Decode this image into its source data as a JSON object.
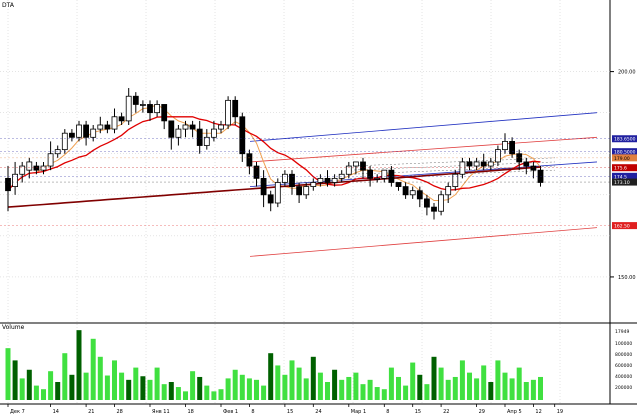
{
  "window": {
    "title_tag": "DTA"
  },
  "price_panel": {
    "axis_labels": [
      "200.00",
      "150.00"
    ],
    "price_flags": [
      {
        "text": "183.6500",
        "bg": "#2020a0",
        "fg": "#ffffff"
      },
      {
        "text": "180.5000",
        "bg": "#2020a0",
        "fg": "#ffffff"
      },
      {
        "text": "179.00",
        "bg": "#e08040",
        "fg": "#000000"
      },
      {
        "text": "175.6",
        "bg": "#c00000",
        "fg": "#ffffff"
      },
      {
        "text": "174.5",
        "bg": "#2020a0",
        "fg": "#ffffff"
      },
      {
        "text": "173.10",
        "bg": "#202020",
        "fg": "#ffffff"
      },
      {
        "text": "162.50",
        "bg": "#e02020",
        "fg": "#ffffff"
      }
    ]
  },
  "volume_panel": {
    "title": "Volume",
    "axis_labels": [
      "17949",
      "100000",
      "800000",
      "600000",
      "400000",
      "200000"
    ]
  },
  "time_axis": {
    "labels": [
      "Дек 7",
      "14",
      "21",
      "28",
      "Янв 11",
      "18",
      "Фев 1",
      "8",
      "15",
      "24",
      "Мар 1",
      "8",
      "15",
      "22",
      "29",
      "Апр 5",
      "12",
      "19"
    ]
  },
  "colors": {
    "grid": "#c8c8c8",
    "candle_up": "#ffffff",
    "candle_down": "#000000",
    "ma_fast": "#f0a050",
    "ma_mid": "#e00000",
    "ma_slow": "#800000",
    "channel_blue": "#2030c0",
    "channel_red": "#e04040",
    "volume_up": "#40e040",
    "volume_down": "#006000"
  },
  "chart_data": {
    "type": "candlestick",
    "candles": [
      [
        174,
        171,
        177,
        166
      ],
      [
        172,
        175,
        178,
        170
      ],
      [
        175,
        177,
        178,
        173
      ],
      [
        176,
        178,
        179,
        174
      ],
      [
        177,
        176,
        178,
        175
      ],
      [
        176,
        177,
        178,
        175
      ],
      [
        177,
        180,
        183,
        176
      ],
      [
        180,
        181,
        182,
        179
      ],
      [
        181,
        185,
        186,
        180
      ],
      [
        185,
        184,
        186,
        183
      ],
      [
        184,
        187,
        188,
        183
      ],
      [
        187,
        184,
        188,
        182
      ],
      [
        184,
        186,
        187,
        183
      ],
      [
        186,
        187,
        189,
        185
      ],
      [
        187,
        186,
        188,
        185
      ],
      [
        186,
        189,
        191,
        185
      ],
      [
        189,
        188,
        190,
        187
      ],
      [
        188,
        194,
        196,
        187
      ],
      [
        194,
        192,
        195,
        190
      ],
      [
        192,
        192,
        193,
        190
      ],
      [
        192,
        190,
        193,
        188
      ],
      [
        190,
        192,
        193,
        189
      ],
      [
        192,
        188,
        192,
        186
      ],
      [
        188,
        184,
        188,
        181
      ],
      [
        184,
        186,
        187,
        182
      ],
      [
        186,
        187,
        188,
        184
      ],
      [
        187,
        186,
        188,
        184
      ],
      [
        186,
        182,
        188,
        180
      ],
      [
        182,
        184,
        186,
        181
      ],
      [
        184,
        186,
        188,
        183
      ],
      [
        186,
        187,
        188,
        185
      ],
      [
        187,
        193,
        194,
        186
      ],
      [
        193,
        189,
        194,
        187
      ],
      [
        189,
        180,
        190,
        178
      ],
      [
        180,
        177,
        181,
        175
      ],
      [
        177,
        174,
        178,
        172
      ],
      [
        174,
        170,
        176,
        167
      ],
      [
        170,
        168,
        171,
        166
      ],
      [
        168,
        173,
        174,
        167
      ],
      [
        173,
        175,
        176,
        172
      ],
      [
        175,
        172,
        176,
        170
      ],
      [
        172,
        170,
        173,
        168
      ],
      [
        170,
        172,
        173,
        169
      ],
      [
        172,
        173,
        174,
        171
      ],
      [
        173,
        174,
        175,
        172
      ],
      [
        174,
        173,
        176,
        172
      ],
      [
        173,
        174,
        175,
        172
      ],
      [
        174,
        175,
        176,
        173
      ],
      [
        175,
        177,
        178,
        174
      ],
      [
        177,
        178,
        178,
        175
      ],
      [
        178,
        176,
        179,
        174
      ],
      [
        176,
        174,
        177,
        172
      ],
      [
        174,
        174,
        175,
        173
      ],
      [
        174,
        176,
        176,
        173
      ],
      [
        176,
        173,
        177,
        172
      ],
      [
        173,
        172,
        173,
        171
      ],
      [
        172,
        170,
        173,
        169
      ],
      [
        170,
        171,
        172,
        169
      ],
      [
        171,
        169,
        172,
        167
      ],
      [
        169,
        167,
        170,
        165
      ],
      [
        167,
        166,
        168,
        164
      ],
      [
        166,
        170,
        171,
        165
      ],
      [
        170,
        172,
        173,
        168
      ],
      [
        172,
        175,
        176,
        171
      ],
      [
        175,
        178,
        179,
        174
      ],
      [
        178,
        177,
        179,
        176
      ],
      [
        177,
        178,
        179,
        176
      ],
      [
        178,
        177,
        180,
        176
      ],
      [
        177,
        178,
        179,
        176
      ],
      [
        178,
        181,
        182,
        177
      ],
      [
        181,
        183,
        185,
        180
      ],
      [
        183,
        180,
        184,
        179
      ],
      [
        180,
        178,
        181,
        176
      ],
      [
        178,
        177,
        179,
        175
      ],
      [
        177,
        176,
        178,
        174
      ],
      [
        176,
        173,
        177,
        172
      ]
    ],
    "volume": [
      [
        72,
        1
      ],
      [
        55,
        0
      ],
      [
        30,
        1
      ],
      [
        42,
        0
      ],
      [
        20,
        1
      ],
      [
        15,
        1
      ],
      [
        40,
        1
      ],
      [
        25,
        0
      ],
      [
        65,
        1
      ],
      [
        35,
        0
      ],
      [
        97,
        0
      ],
      [
        38,
        1
      ],
      [
        85,
        1
      ],
      [
        60,
        1
      ],
      [
        34,
        1
      ],
      [
        55,
        1
      ],
      [
        38,
        1
      ],
      [
        28,
        0
      ],
      [
        45,
        1
      ],
      [
        33,
        0
      ],
      [
        28,
        1
      ],
      [
        45,
        1
      ],
      [
        22,
        1
      ],
      [
        25,
        0
      ],
      [
        18,
        1
      ],
      [
        12,
        1
      ],
      [
        40,
        1
      ],
      [
        32,
        0
      ],
      [
        20,
        1
      ],
      [
        12,
        1
      ],
      [
        15,
        1
      ],
      [
        30,
        1
      ],
      [
        42,
        1
      ],
      [
        35,
        1
      ],
      [
        30,
        1
      ],
      [
        28,
        1
      ],
      [
        20,
        1
      ],
      [
        65,
        0
      ],
      [
        48,
        1
      ],
      [
        35,
        1
      ],
      [
        55,
        1
      ],
      [
        45,
        1
      ],
      [
        30,
        1
      ],
      [
        60,
        0
      ],
      [
        38,
        1
      ],
      [
        25,
        1
      ],
      [
        42,
        0
      ],
      [
        28,
        1
      ],
      [
        32,
        1
      ],
      [
        38,
        1
      ],
      [
        22,
        1
      ],
      [
        28,
        1
      ],
      [
        18,
        1
      ],
      [
        15,
        1
      ],
      [
        45,
        1
      ],
      [
        32,
        1
      ],
      [
        20,
        1
      ],
      [
        52,
        1
      ],
      [
        35,
        0
      ],
      [
        22,
        1
      ],
      [
        60,
        0
      ],
      [
        45,
        1
      ],
      [
        28,
        1
      ],
      [
        32,
        1
      ],
      [
        55,
        1
      ],
      [
        38,
        1
      ],
      [
        30,
        1
      ],
      [
        48,
        1
      ],
      [
        25,
        0
      ],
      [
        55,
        1
      ],
      [
        38,
        1
      ],
      [
        30,
        1
      ],
      [
        45,
        1
      ],
      [
        25,
        1
      ],
      [
        28,
        1
      ],
      [
        32,
        1
      ]
    ]
  }
}
